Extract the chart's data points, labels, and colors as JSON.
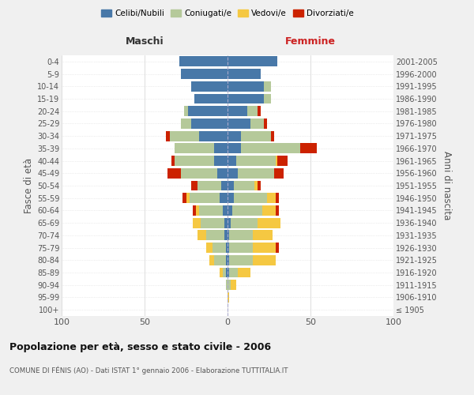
{
  "age_groups": [
    "100+",
    "95-99",
    "90-94",
    "85-89",
    "80-84",
    "75-79",
    "70-74",
    "65-69",
    "60-64",
    "55-59",
    "50-54",
    "45-49",
    "40-44",
    "35-39",
    "30-34",
    "25-29",
    "20-24",
    "15-19",
    "10-14",
    "5-9",
    "0-4"
  ],
  "birth_years": [
    "≤ 1905",
    "1906-1910",
    "1911-1915",
    "1916-1920",
    "1921-1925",
    "1926-1930",
    "1931-1935",
    "1936-1940",
    "1941-1945",
    "1946-1950",
    "1951-1955",
    "1956-1960",
    "1961-1965",
    "1966-1970",
    "1971-1975",
    "1976-1980",
    "1981-1985",
    "1986-1990",
    "1991-1995",
    "1996-2000",
    "2001-2005"
  ],
  "colors": {
    "celibi": "#4878a8",
    "coniugati": "#b5c99a",
    "vedovi": "#f5c842",
    "divorziati": "#cc2200"
  },
  "maschi": {
    "celibi": [
      0,
      0,
      0,
      1,
      1,
      1,
      2,
      2,
      3,
      5,
      4,
      6,
      8,
      8,
      17,
      22,
      24,
      20,
      22,
      28,
      29
    ],
    "coniugati": [
      0,
      0,
      1,
      2,
      7,
      8,
      11,
      14,
      14,
      18,
      14,
      22,
      24,
      24,
      18,
      6,
      2,
      0,
      0,
      0,
      0
    ],
    "vedovi": [
      0,
      0,
      0,
      2,
      3,
      4,
      5,
      5,
      2,
      2,
      0,
      0,
      0,
      0,
      0,
      0,
      0,
      0,
      0,
      0,
      0
    ],
    "divorziati": [
      0,
      0,
      0,
      0,
      0,
      0,
      0,
      0,
      2,
      2,
      4,
      8,
      2,
      0,
      2,
      0,
      0,
      0,
      0,
      0,
      0
    ]
  },
  "femmine": {
    "celibi": [
      0,
      0,
      0,
      1,
      1,
      1,
      1,
      2,
      3,
      4,
      4,
      6,
      5,
      8,
      8,
      14,
      12,
      22,
      22,
      20,
      30
    ],
    "coniugati": [
      0,
      0,
      2,
      5,
      14,
      14,
      14,
      16,
      18,
      20,
      12,
      22,
      24,
      36,
      18,
      8,
      6,
      4,
      4,
      0,
      0
    ],
    "vedovi": [
      0,
      1,
      3,
      8,
      14,
      14,
      12,
      14,
      8,
      5,
      2,
      0,
      1,
      0,
      0,
      0,
      0,
      0,
      0,
      0,
      0
    ],
    "divorziati": [
      0,
      0,
      0,
      0,
      0,
      2,
      0,
      0,
      2,
      2,
      2,
      6,
      6,
      10,
      2,
      2,
      2,
      0,
      0,
      0,
      0
    ]
  },
  "xlim": 100,
  "title_main": "Popolazione per età, sesso e stato civile - 2006",
  "title_sub": "COMUNE DI FÉNIS (AO) - Dati ISTAT 1° gennaio 2006 - Elaborazione TUTTITALIA.IT",
  "ylabel_left": "Fasce di età",
  "ylabel_right": "Anni di nascita",
  "xlabel_left": "Maschi",
  "xlabel_right": "Femmine",
  "legend_labels": [
    "Celibi/Nubili",
    "Coniugati/e",
    "Vedovi/e",
    "Divorziati/e"
  ],
  "bg_color": "#f0f0f0",
  "plot_bg": "#ffffff"
}
